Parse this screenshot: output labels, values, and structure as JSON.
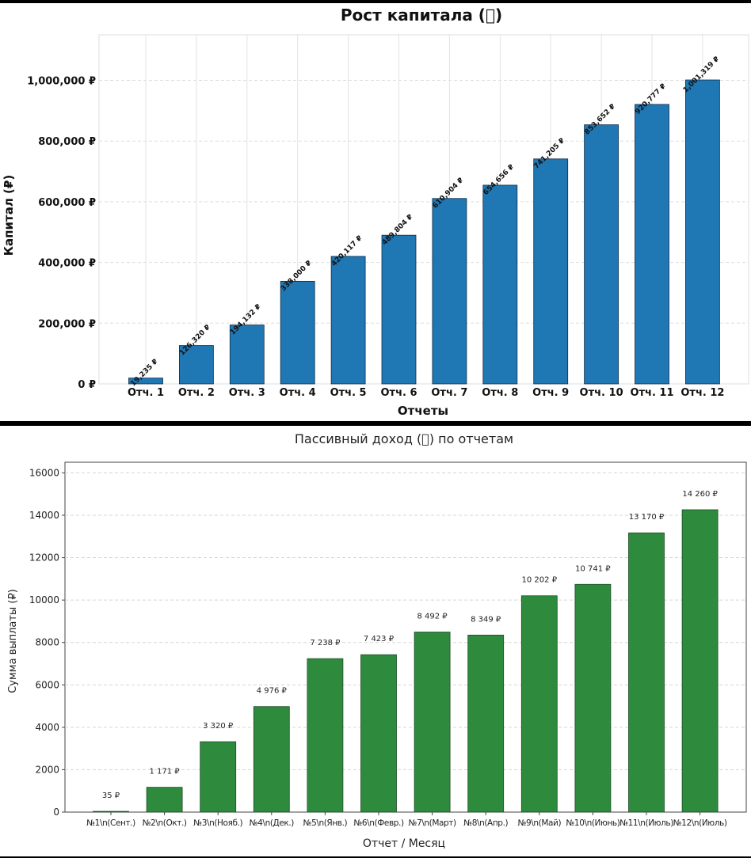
{
  "charts_meta": {
    "currency": "₽"
  },
  "chart_data": [
    {
      "type": "bar",
      "title": "Рост капитала (􏰀)",
      "xlabel": "Отчеты",
      "ylabel": "Капитал (₽)",
      "categories": [
        "Отч. 1",
        "Отч. 2",
        "Отч. 3",
        "Отч. 4",
        "Отч. 5",
        "Отч. 6",
        "Отч. 7",
        "Отч. 8",
        "Отч. 9",
        "Отч. 10",
        "Отч. 11",
        "Отч. 12"
      ],
      "values": [
        19235,
        126320,
        194132,
        338000,
        420117,
        489804,
        610904,
        654656,
        741205,
        853652,
        920777,
        1001319
      ],
      "data_labels": [
        "19,235 ₽",
        "126,320 ₽",
        "194,132 ₽",
        "338,000 ₽",
        "420,117 ₽",
        "489,804 ₽",
        "610,904 ₽",
        "654,656 ₽",
        "741,205 ₽",
        "853,652 ₽",
        "920,777 ₽",
        "1,001,319 ₽"
      ],
      "yticks": [
        0,
        200000,
        400000,
        600000,
        800000,
        1000000
      ],
      "ytick_labels": [
        "0 ₽",
        "200,000 ₽",
        "400,000 ₽",
        "600,000 ₽",
        "800,000 ₽",
        "1,000,000 ₽"
      ],
      "ylim": [
        0,
        1150000
      ],
      "grid": true,
      "bar_color": "#1f77b4"
    },
    {
      "type": "bar",
      "title": "Пассивный доход (􏰀) по отчетам",
      "xlabel": "Отчет / Месяц",
      "ylabel": "Сумма выплаты (₽)",
      "categories": [
        "№1\\n(Сент.)",
        "№2\\n(Окт.)",
        "№3\\n(Нояб.)",
        "№4\\n(Дек.)",
        "№5\\n(Янв.)",
        "№6\\n(Февр.)",
        "№7\\n(Март)",
        "№8\\n(Апр.)",
        "№9\\n(Май)",
        "№10\\n(Июнь)",
        "№11\\n(Июль)",
        "№12\\n(Июль)"
      ],
      "values": [
        35,
        1171,
        3320,
        4976,
        7238,
        7423,
        8492,
        8349,
        10202,
        10741,
        13170,
        14260
      ],
      "data_labels": [
        "35 ₽",
        "1 171 ₽",
        "3 320 ₽",
        "4 976 ₽",
        "7 238 ₽",
        "7 423 ₽",
        "8 492 ₽",
        "8 349 ₽",
        "10 202 ₽",
        "10 741 ₽",
        "13 170 ₽",
        "14 260 ₽"
      ],
      "yticks": [
        0,
        2000,
        4000,
        6000,
        8000,
        10000,
        12000,
        14000,
        16000
      ],
      "ytick_labels": [
        "0",
        "2000",
        "4000",
        "6000",
        "8000",
        "10000",
        "12000",
        "14000",
        "16000"
      ],
      "ylim": [
        0,
        16500
      ],
      "grid": true,
      "bar_color": "#2e8b3e"
    }
  ]
}
